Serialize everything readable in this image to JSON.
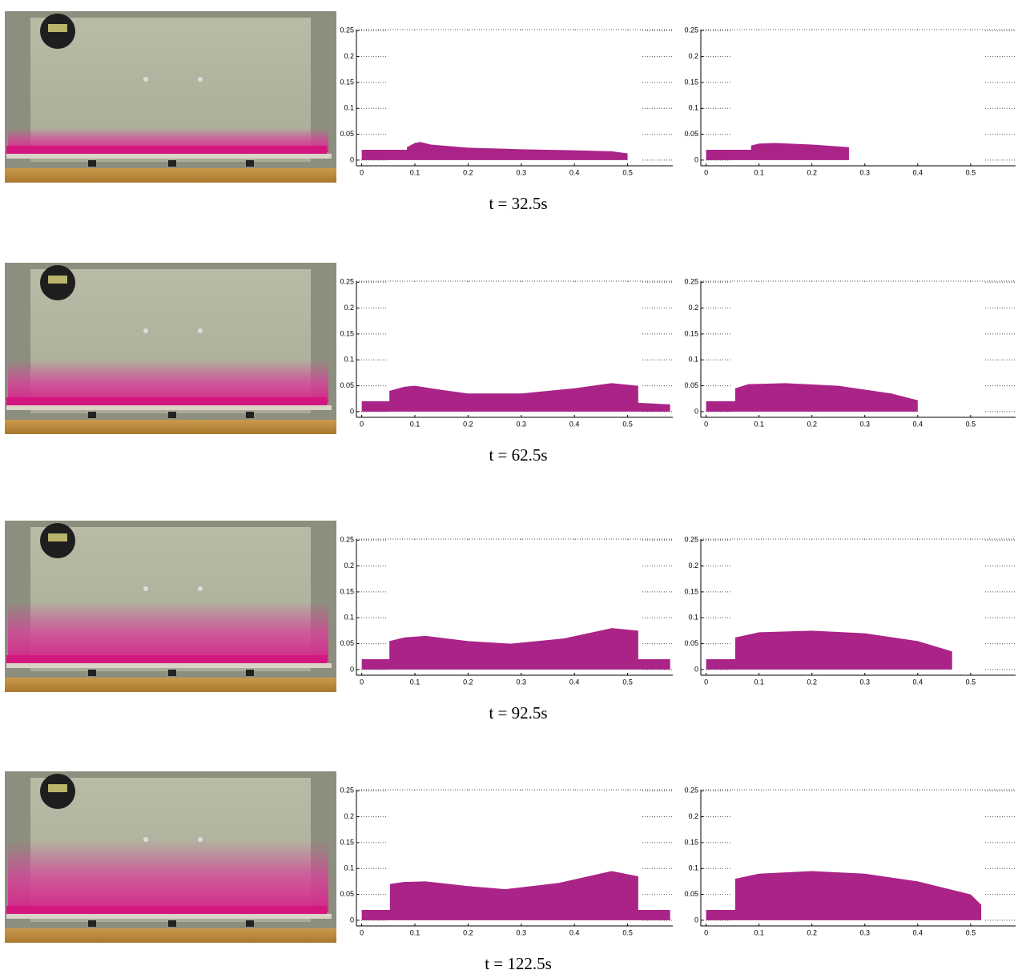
{
  "captions": [
    "t = 32.5s",
    "t = 62.5s",
    "t = 92.5s",
    "t = 122.5s"
  ],
  "chart_data": [
    {
      "type": "area",
      "color": "#a51781",
      "xlim": [
        -0.01,
        0.585
      ],
      "ylim": [
        -0.011,
        0.252
      ],
      "xticks": [
        0,
        0.1,
        0.2,
        0.3,
        0.4,
        0.5
      ],
      "yticks": [
        0,
        0.05,
        0.1,
        0.15,
        0.2,
        0.25
      ],
      "grid": true,
      "x": [
        0,
        0.085,
        0.085,
        0.1,
        0.11,
        0.13,
        0.2,
        0.3,
        0.4,
        0.47,
        0.5
      ],
      "values": [
        0.02,
        0.02,
        0.025,
        0.033,
        0.035,
        0.03,
        0.024,
        0.021,
        0.019,
        0.017,
        0.013
      ]
    },
    {
      "type": "area",
      "color": "#a51781",
      "xlim": [
        -0.01,
        0.585
      ],
      "ylim": [
        -0.011,
        0.252
      ],
      "xticks": [
        0,
        0.1,
        0.2,
        0.3,
        0.4,
        0.5
      ],
      "yticks": [
        0,
        0.05,
        0.1,
        0.15,
        0.2,
        0.25
      ],
      "grid": true,
      "x": [
        0,
        0.085,
        0.085,
        0.1,
        0.13,
        0.2,
        0.27,
        0.27
      ],
      "values": [
        0.02,
        0.02,
        0.028,
        0.032,
        0.033,
        0.03,
        0.025,
        0.02
      ]
    },
    {
      "type": "area",
      "color": "#a51781",
      "xlim": [
        -0.01,
        0.585
      ],
      "ylim": [
        -0.011,
        0.252
      ],
      "xticks": [
        0,
        0.1,
        0.2,
        0.3,
        0.4,
        0.5
      ],
      "yticks": [
        0,
        0.05,
        0.1,
        0.15,
        0.2,
        0.25
      ],
      "grid": true,
      "x": [
        0,
        0.052,
        0.052,
        0.08,
        0.1,
        0.15,
        0.2,
        0.3,
        0.4,
        0.47,
        0.52,
        0.52,
        0.58
      ],
      "values": [
        0.02,
        0.02,
        0.04,
        0.048,
        0.05,
        0.042,
        0.035,
        0.035,
        0.045,
        0.055,
        0.05,
        0.017,
        0.014
      ]
    },
    {
      "type": "area",
      "color": "#a51781",
      "xlim": [
        -0.01,
        0.585
      ],
      "ylim": [
        -0.011,
        0.252
      ],
      "xticks": [
        0,
        0.1,
        0.2,
        0.3,
        0.4,
        0.5
      ],
      "yticks": [
        0,
        0.05,
        0.1,
        0.15,
        0.2,
        0.25
      ],
      "grid": true,
      "x": [
        0,
        0.055,
        0.055,
        0.08,
        0.15,
        0.25,
        0.35,
        0.4,
        0.4
      ],
      "values": [
        0.02,
        0.02,
        0.045,
        0.053,
        0.055,
        0.05,
        0.035,
        0.022,
        0.02
      ]
    },
    {
      "type": "area",
      "color": "#a51781",
      "xlim": [
        -0.01,
        0.585
      ],
      "ylim": [
        -0.011,
        0.252
      ],
      "xticks": [
        0,
        0.1,
        0.2,
        0.3,
        0.4,
        0.5
      ],
      "yticks": [
        0,
        0.05,
        0.1,
        0.15,
        0.2,
        0.25
      ],
      "grid": true,
      "x": [
        0,
        0.052,
        0.052,
        0.08,
        0.12,
        0.2,
        0.28,
        0.38,
        0.47,
        0.52,
        0.52,
        0.58
      ],
      "values": [
        0.02,
        0.02,
        0.055,
        0.062,
        0.065,
        0.055,
        0.05,
        0.06,
        0.08,
        0.075,
        0.02,
        0.02
      ]
    },
    {
      "type": "area",
      "color": "#a51781",
      "xlim": [
        -0.01,
        0.585
      ],
      "ylim": [
        -0.011,
        0.252
      ],
      "xticks": [
        0,
        0.1,
        0.2,
        0.3,
        0.4,
        0.5
      ],
      "yticks": [
        0,
        0.05,
        0.1,
        0.15,
        0.2,
        0.25
      ],
      "grid": true,
      "x": [
        0,
        0.055,
        0.055,
        0.1,
        0.2,
        0.3,
        0.4,
        0.465,
        0.465
      ],
      "values": [
        0.02,
        0.02,
        0.062,
        0.072,
        0.075,
        0.07,
        0.055,
        0.035,
        0.025
      ]
    },
    {
      "type": "area",
      "color": "#a51781",
      "xlim": [
        -0.01,
        0.585
      ],
      "ylim": [
        -0.011,
        0.252
      ],
      "xticks": [
        0,
        0.1,
        0.2,
        0.3,
        0.4,
        0.5
      ],
      "yticks": [
        0,
        0.05,
        0.1,
        0.15,
        0.2,
        0.25
      ],
      "grid": true,
      "x": [
        0,
        0.053,
        0.053,
        0.08,
        0.12,
        0.2,
        0.27,
        0.37,
        0.47,
        0.52,
        0.52,
        0.58
      ],
      "values": [
        0.02,
        0.02,
        0.07,
        0.074,
        0.075,
        0.066,
        0.06,
        0.072,
        0.095,
        0.085,
        0.02,
        0.02
      ]
    },
    {
      "type": "area",
      "color": "#a51781",
      "xlim": [
        -0.01,
        0.585
      ],
      "ylim": [
        -0.011,
        0.252
      ],
      "xticks": [
        0,
        0.1,
        0.2,
        0.3,
        0.4,
        0.5
      ],
      "yticks": [
        0,
        0.05,
        0.1,
        0.15,
        0.2,
        0.25
      ],
      "grid": true,
      "x": [
        0,
        0.055,
        0.055,
        0.1,
        0.2,
        0.3,
        0.4,
        0.5,
        0.52,
        0.52
      ],
      "values": [
        0.02,
        0.02,
        0.08,
        0.09,
        0.095,
        0.09,
        0.075,
        0.05,
        0.03,
        0.022
      ]
    }
  ]
}
